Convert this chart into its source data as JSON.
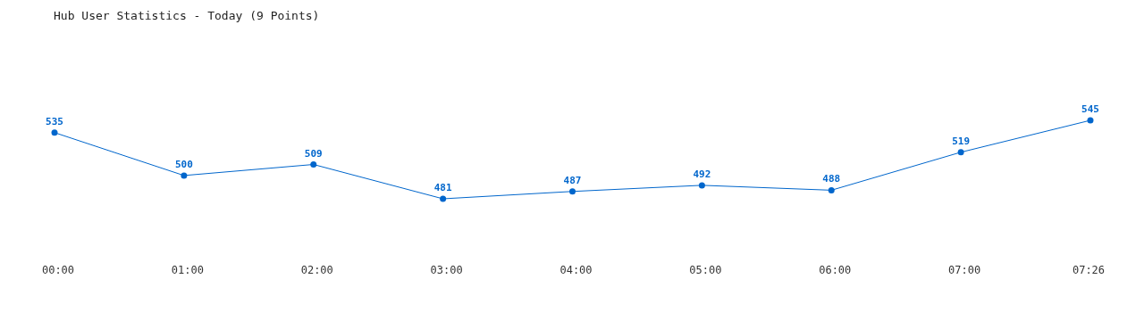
{
  "chart_data": {
    "type": "line",
    "title": "Hub User Statistics - Today (9 Points)",
    "categories": [
      "00:00",
      "01:00",
      "02:00",
      "03:00",
      "04:00",
      "05:00",
      "06:00",
      "07:00",
      "07:26"
    ],
    "series": [
      {
        "color": "#0066cc",
        "values": [
          535,
          500,
          509,
          481,
          487,
          492,
          488,
          519,
          545
        ]
      }
    ],
    "data_labels": true,
    "marker": "circle",
    "line_style": "solid"
  }
}
